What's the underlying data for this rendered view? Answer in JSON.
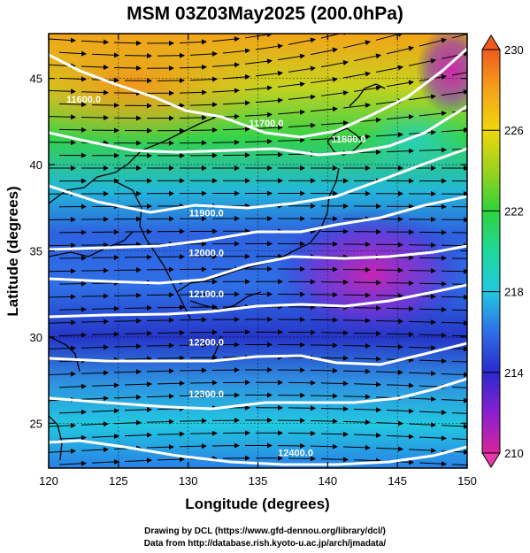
{
  "title": "MSM 03Z03May2025 (200.0hPa)",
  "chart_data": {
    "type": "heatmap",
    "description_fields": "temperature shading with geopotential height contours and wind streamlines",
    "xlabel": "Longitude (degrees)",
    "ylabel": "Latitude  (degrees)",
    "xlim": [
      120,
      150
    ],
    "ylim": [
      22.4,
      47.6
    ],
    "x_ticks": [
      "120",
      "125",
      "130",
      "135",
      "140",
      "145",
      "150"
    ],
    "y_ticks": [
      "25",
      "30",
      "35",
      "40",
      "45"
    ],
    "colorbar": {
      "min": 210,
      "max": 230,
      "ticks": [
        "210",
        "214",
        "218",
        "222",
        "226",
        "230"
      ],
      "colors": [
        "#d8259a",
        "#8a1fd0",
        "#2a2acc",
        "#2f6fe6",
        "#22c8e0",
        "#1fd79a",
        "#2fd23c",
        "#9bd21e",
        "#f0d60c",
        "#f5a31a",
        "#ef5a1e"
      ]
    },
    "contours": [
      {
        "label": "11600.0",
        "lon": 122.5,
        "lat": 43.6
      },
      {
        "label": "11700.0",
        "lon": 135.6,
        "lat": 42.2
      },
      {
        "label": "11800.0",
        "lon": 141.5,
        "lat": 41.3
      },
      {
        "label": "11900.0",
        "lon": 131.3,
        "lat": 37.0
      },
      {
        "label": "12000.0",
        "lon": 131.3,
        "lat": 34.7
      },
      {
        "label": "12100.0",
        "lon": 131.3,
        "lat": 32.3
      },
      {
        "label": "12200.0",
        "lon": 131.3,
        "lat": 29.5
      },
      {
        "label": "12300.0",
        "lon": 131.3,
        "lat": 26.5
      },
      {
        "label": "12400.0",
        "lon": 137.7,
        "lat": 23.1
      }
    ]
  },
  "credits": {
    "line1": "Drawing by DCL (https://www.gfd-dennou.org/library/dcl/)",
    "line2": "Data from http://database.rish.kyoto-u.ac.jp/arch/jmadata/"
  }
}
